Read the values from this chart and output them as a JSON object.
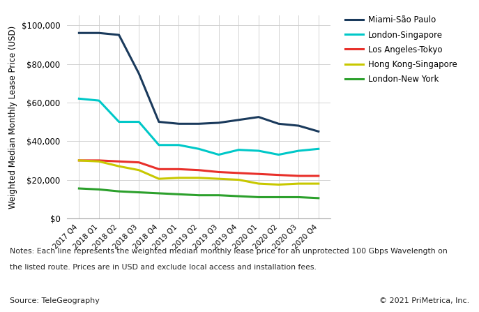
{
  "quarters": [
    "2017 Q4",
    "2018 Q1",
    "2018 Q2",
    "2018 Q3",
    "2018 Q4",
    "2019 Q1",
    "2019 Q2",
    "2019 Q3",
    "2019 Q4",
    "2020 Q1",
    "2020 Q2",
    "2020 Q3",
    "2020 Q4"
  ],
  "series_order": [
    "Miami-São Paulo",
    "London-Singapore",
    "Los Angeles-Tokyo",
    "Hong Kong-Singapore",
    "London-New York"
  ],
  "series": {
    "Miami-São Paulo": {
      "color": "#1a3a5c",
      "values": [
        96000,
        96000,
        95000,
        75000,
        50000,
        49000,
        49000,
        49500,
        51000,
        52500,
        49000,
        48000,
        45000
      ]
    },
    "London-Singapore": {
      "color": "#00c8c8",
      "values": [
        62000,
        61000,
        50000,
        50000,
        38000,
        38000,
        36000,
        33000,
        35500,
        35000,
        33000,
        35000,
        36000
      ]
    },
    "Los Angeles-Tokyo": {
      "color": "#e8302a",
      "values": [
        30000,
        30000,
        29500,
        29000,
        25500,
        25500,
        25000,
        24000,
        23500,
        23000,
        22500,
        22000,
        22000
      ]
    },
    "Hong Kong-Singapore": {
      "color": "#c8c800",
      "values": [
        30000,
        29500,
        27000,
        25000,
        20500,
        21000,
        21000,
        20500,
        20000,
        18000,
        17500,
        18000,
        18000
      ]
    },
    "London-New York": {
      "color": "#2ca02c",
      "values": [
        15500,
        15000,
        14000,
        13500,
        13000,
        12500,
        12000,
        12000,
        11500,
        11000,
        11000,
        11000,
        10500
      ]
    }
  },
  "ylabel": "Weighted Median Monthly Lease Price (USD)",
  "ylim": [
    0,
    105000
  ],
  "yticks": [
    0,
    20000,
    40000,
    60000,
    80000,
    100000
  ],
  "background_color": "#ffffff",
  "grid_color": "#cccccc",
  "notes_line1": "Notes: Each line represents the weighted median monthly lease price for an unprotected 100 Gbps Wavelength on",
  "notes_line2": "the listed route. Prices are in USD and exclude local access and installation fees.",
  "source": "Source: TeleGeography",
  "copyright": "© 2021 PriMetrica, Inc."
}
